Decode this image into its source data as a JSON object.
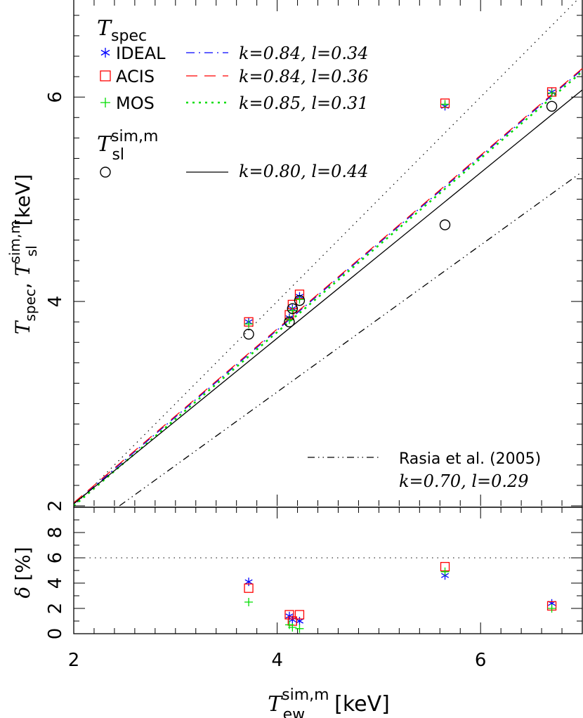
{
  "chart_data": [
    {
      "type": "scatter",
      "panel": "main",
      "x_axis_label": {
        "main": "T",
        "sup": "sim,m",
        "sub": "ew",
        "unit": "[keV]"
      },
      "y_axis_label": {
        "main1": "T",
        "sub1": "spec",
        "sep": ", ",
        "main2": "T",
        "sup2": "sim,m",
        "sub2": "sl",
        "unit": "[keV]"
      },
      "xlim": [
        2,
        7
      ],
      "ylim": [
        2,
        6.95
      ],
      "x_ticks": [
        2,
        4,
        6
      ],
      "y_ticks": [
        2,
        4,
        6
      ],
      "x": [
        3.72,
        4.12,
        4.15,
        4.22,
        5.65,
        6.7
      ],
      "series": [
        {
          "name": "IDEAL",
          "marker": "asterisk",
          "color": "#0000ff",
          "values": [
            3.8,
            3.84,
            3.93,
            4.05,
            5.91,
            6.05
          ]
        },
        {
          "name": "ACIS",
          "marker": "square",
          "color": "#ff0000",
          "values": [
            3.8,
            3.87,
            3.97,
            4.07,
            5.94,
            6.05
          ]
        },
        {
          "name": "MOS",
          "marker": "plus",
          "color": "#00dd00",
          "values": [
            3.78,
            3.82,
            3.91,
            4.02,
            5.93,
            6.04
          ]
        },
        {
          "name": "T_sl",
          "marker": "circle",
          "color": "#000000",
          "values": [
            3.68,
            3.8,
            3.93,
            4.01,
            4.75,
            5.91
          ]
        }
      ],
      "fits": [
        {
          "series": "IDEAL",
          "style": "dash-dot",
          "color": "#0000ff",
          "k": 0.84,
          "l": 0.34
        },
        {
          "series": "ACIS",
          "style": "long-dash",
          "color": "#ff0000",
          "k": 0.84,
          "l": 0.36
        },
        {
          "series": "MOS",
          "style": "dotted",
          "color": "#00dd00",
          "k": 0.85,
          "l": 0.31
        },
        {
          "series": "T_sl",
          "style": "solid",
          "color": "#000000",
          "k": 0.8,
          "l": 0.44
        },
        {
          "series": "Rasia",
          "style": "dash-dot-dot",
          "color": "#000000",
          "k": 0.7,
          "l": 0.29
        }
      ],
      "legend": {
        "placement": "top-left",
        "group1_title": {
          "main": "T",
          "sub": "spec"
        },
        "group2_title": {
          "main": "T",
          "sup": "sim,m",
          "sub": "sl"
        },
        "entries": [
          {
            "label": "IDEAL",
            "fit_text": "k=0.84,  l=0.34"
          },
          {
            "label": "ACIS",
            "fit_text": "k=0.84,  l=0.36"
          },
          {
            "label": "MOS",
            "fit_text": "k=0.85,  l=0.31"
          },
          {
            "label": "",
            "fit_text": "k=0.80,  l=0.44"
          }
        ],
        "rasia_label": "Rasia et al. (2005)",
        "rasia_fit_text": "k=0.70,  l=0.29"
      },
      "reference_line": "y = x (dotted)"
    },
    {
      "type": "scatter",
      "panel": "residual",
      "y_axis_label": {
        "main": "δ",
        "unit": "[%]"
      },
      "ylim": [
        0,
        10
      ],
      "y_ticks": [
        0,
        2,
        4,
        6,
        8
      ],
      "y_tick_labels": [
        "0",
        "2",
        "4",
        "6",
        "8"
      ],
      "x": [
        3.72,
        4.12,
        4.15,
        4.22,
        5.65,
        6.7
      ],
      "reference_y": 6,
      "series": [
        {
          "name": "IDEAL",
          "values": [
            4.1,
            1.4,
            1.1,
            1.0,
            4.6,
            2.4
          ]
        },
        {
          "name": "ACIS",
          "values": [
            3.6,
            1.5,
            1.0,
            1.5,
            5.3,
            2.2
          ]
        },
        {
          "name": "MOS",
          "values": [
            2.5,
            0.7,
            0.5,
            0.4,
            4.9,
            2.0
          ]
        }
      ]
    }
  ]
}
